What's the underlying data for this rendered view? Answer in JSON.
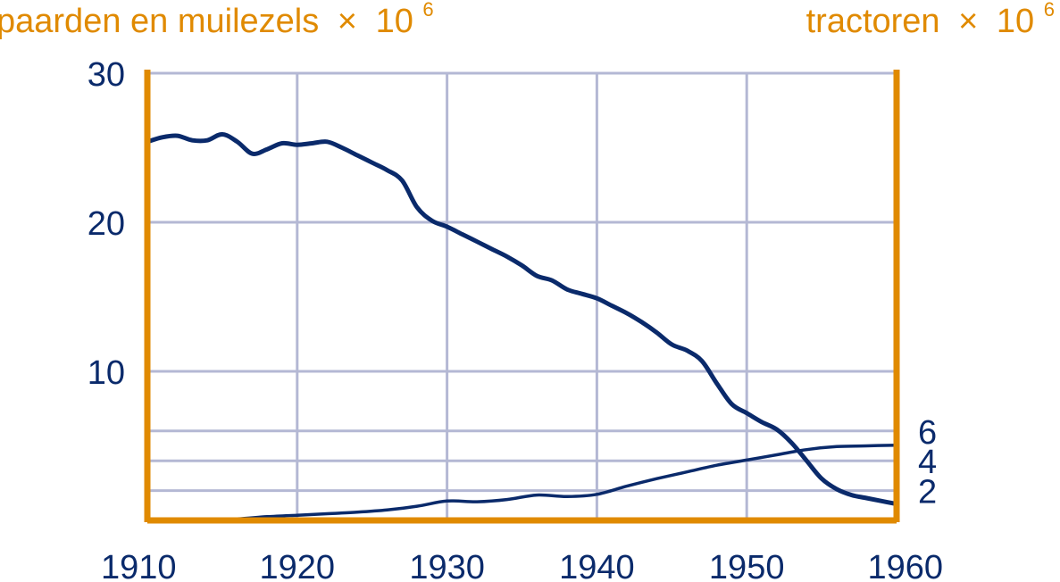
{
  "chart_data": {
    "type": "line",
    "left_axis_label": "paarden en muilezels",
    "right_axis_label": "tractoren",
    "scale_sign": "×",
    "scale_base": "10",
    "scale_exponent": "6",
    "x_ticks": [
      "1910",
      "1920",
      "1930",
      "1940",
      "1950",
      "1960"
    ],
    "left_ticks": [
      {
        "value": 10,
        "label": "10"
      },
      {
        "value": 20,
        "label": "20"
      },
      {
        "value": 30,
        "label": "30"
      }
    ],
    "right_ticks": [
      {
        "value": 2,
        "label": "2"
      },
      {
        "value": 4,
        "label": "4"
      },
      {
        "value": 6,
        "label": "6"
      }
    ],
    "xlim": [
      1910,
      1960
    ],
    "left_ylim": [
      0,
      30
    ],
    "right_ylim": [
      0,
      30
    ],
    "grid": true,
    "colors": {
      "series": "#0a2a6b",
      "frame": "#e08a00",
      "grid": "#b4b8d4",
      "ticks": "#0a2a6b"
    },
    "series": [
      {
        "axis": "left",
        "x": [
          1910,
          1911,
          1912,
          1913,
          1914,
          1915,
          1916,
          1917,
          1918,
          1919,
          1920,
          1921,
          1922,
          1923,
          1924,
          1925,
          1926,
          1927,
          1928,
          1929,
          1930,
          1931,
          1932,
          1933,
          1934,
          1935,
          1936,
          1937,
          1938,
          1939,
          1940,
          1941,
          1942,
          1943,
          1944,
          1945,
          1946,
          1947,
          1948,
          1949,
          1950,
          1951,
          1952,
          1953,
          1954,
          1955,
          1956,
          1957,
          1958,
          1959,
          1960
        ],
        "values": [
          25.4,
          25.7,
          25.8,
          25.5,
          25.5,
          25.9,
          25.4,
          24.6,
          24.9,
          25.3,
          25.2,
          25.3,
          25.4,
          25.0,
          24.5,
          24.0,
          23.5,
          22.8,
          21.0,
          20.1,
          19.7,
          19.2,
          18.7,
          18.2,
          17.7,
          17.1,
          16.4,
          16.1,
          15.5,
          15.2,
          14.9,
          14.4,
          13.9,
          13.3,
          12.6,
          11.8,
          11.4,
          10.7,
          9.2,
          7.8,
          7.2,
          6.6,
          6.1,
          5.2,
          4.0,
          2.8,
          2.1,
          1.7,
          1.5,
          1.3,
          1.1
        ],
        "stroke_width": 5
      },
      {
        "axis": "right",
        "x": [
          1910,
          1912,
          1914,
          1916,
          1918,
          1920,
          1922,
          1924,
          1926,
          1928,
          1930,
          1932,
          1934,
          1936,
          1938,
          1940,
          1942,
          1944,
          1946,
          1948,
          1950,
          1952,
          1954,
          1956,
          1958,
          1960
        ],
        "values": [
          0.0,
          0.0,
          0.05,
          0.1,
          0.25,
          0.35,
          0.45,
          0.55,
          0.7,
          0.95,
          1.3,
          1.25,
          1.4,
          1.7,
          1.6,
          1.75,
          2.3,
          2.8,
          3.25,
          3.7,
          4.05,
          4.4,
          4.75,
          4.95,
          5.0,
          5.05
        ],
        "stroke_width": 3.5
      }
    ]
  }
}
